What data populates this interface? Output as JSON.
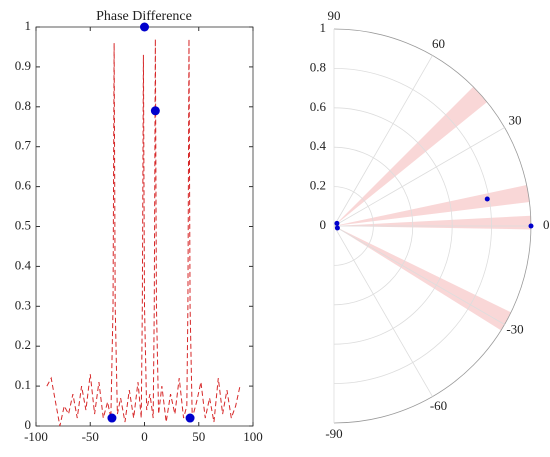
{
  "chart_data": [
    {
      "type": "line",
      "title": "Phase Difference",
      "xlim": [
        -100,
        100
      ],
      "xticks": [
        -100,
        -50,
        0,
        50,
        100
      ],
      "ylim": [
        0,
        1
      ],
      "yticks": [
        0,
        0.1,
        0.2,
        0.3,
        0.4,
        0.5,
        0.6,
        0.7,
        0.8,
        0.9,
        1
      ],
      "series": [
        {
          "color": "#d62728",
          "style": "dashed",
          "x": [
            -90,
            -86,
            -82,
            -78,
            -74,
            -70,
            -66,
            -62,
            -58,
            -54,
            -50,
            -46,
            -42,
            -38,
            -34,
            -31,
            -29,
            -28,
            -27,
            -25,
            -22,
            -18,
            -14,
            -10,
            -6,
            -3,
            -2,
            -1,
            0,
            2,
            5,
            8,
            9,
            10,
            11,
            13,
            16,
            20,
            24,
            28,
            32,
            36,
            39,
            40,
            41,
            42,
            44,
            48,
            52,
            56,
            60,
            64,
            68,
            72,
            76,
            80,
            84,
            88
          ],
          "values": [
            0.1,
            0.12,
            0.06,
            0,
            0.05,
            0.03,
            0.08,
            0.02,
            0.1,
            0.04,
            0.13,
            0.03,
            0.11,
            0.02,
            0.06,
            0.02,
            0.3,
            0.96,
            0.3,
            0.03,
            0.07,
            0.01,
            0.09,
            0.02,
            0.11,
            0.02,
            0.3,
            0.93,
            0.3,
            0.04,
            0.08,
            0.02,
            0.3,
            0.97,
            0.3,
            0.03,
            0.1,
            0.01,
            0.08,
            0.03,
            0.12,
            0.02,
            0.05,
            0.3,
            0.97,
            0.3,
            0.02,
            0.06,
            0.11,
            0.02,
            0.07,
            0.01,
            0.12,
            0.03,
            0.09,
            0.02,
            0.05,
            0.1
          ]
        },
        {
          "color": "#0000cc",
          "style": "markers",
          "x": [
            -30,
            0,
            10,
            42
          ],
          "values": [
            0.02,
            1,
            0.79,
            0.02
          ]
        }
      ]
    },
    {
      "type": "polar",
      "thetalim": [
        -90,
        90
      ],
      "thetaticks": [
        -90,
        -60,
        -30,
        0,
        30,
        60,
        90
      ],
      "rlim": [
        0,
        1
      ],
      "rticks": [
        0,
        0.2,
        0.4,
        0.6,
        0.8,
        1
      ],
      "sector_color": "#f7c6c6",
      "sectors": [
        {
          "from": 39,
          "to": 45
        },
        {
          "from": 7,
          "to": 12
        },
        {
          "from": -1,
          "to": 3
        },
        {
          "from": -32,
          "to": -26
        }
      ],
      "series": [
        {
          "color": "#0000cc",
          "theta": [
            -30,
            0,
            10,
            42
          ],
          "values": [
            0.02,
            1,
            0.79,
            0.02
          ]
        }
      ]
    }
  ]
}
